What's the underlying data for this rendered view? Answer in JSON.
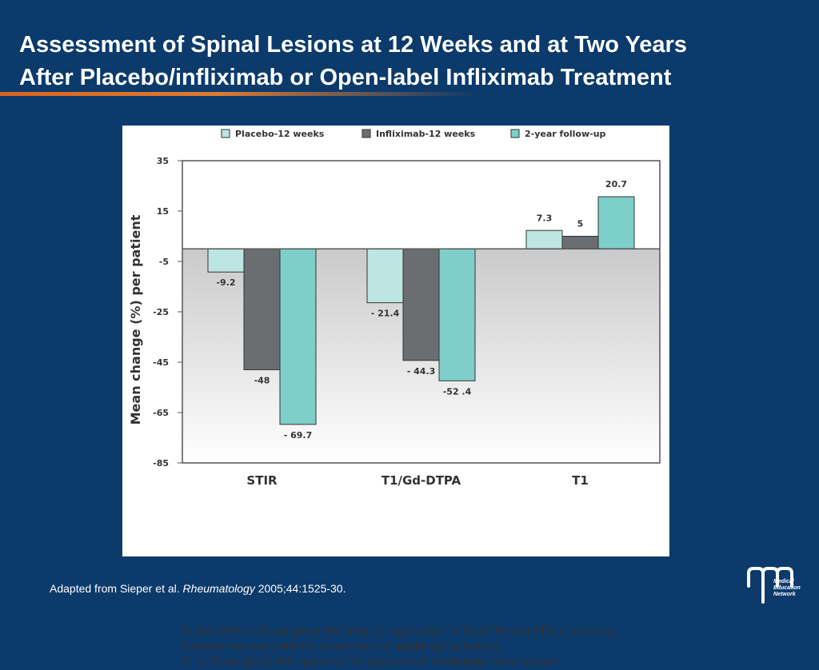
{
  "title": {
    "line1": "Assessment of Spinal Lesions at 12 Weeks and at Two Years",
    "line2": "After Placebo/infliximab or Open-label Infliximab Treatment"
  },
  "chart_data": {
    "type": "bar",
    "categories": [
      "STIR",
      "T1/Gd-DTPA",
      "T1"
    ],
    "series": [
      {
        "name": "Placebo-12 weeks",
        "values": [
          -9.2,
          -21.4,
          7.3
        ],
        "labels": [
          "-9.2",
          "- 21.4",
          "7.3"
        ]
      },
      {
        "name": "Infliximab-12 weeks",
        "values": [
          -48,
          -44.3,
          5
        ],
        "labels": [
          "-48",
          "- 44.3",
          "5"
        ]
      },
      {
        "name": "2-year follow-up",
        "values": [
          -69.7,
          -52.4,
          20.7
        ],
        "labels": [
          "- 69.7",
          "-52 .4",
          "20.7"
        ]
      }
    ],
    "ylabel": "Mean change (%) per patient",
    "yticks": [
      35,
      15,
      -5,
      -25,
      -45,
      -65,
      -85
    ],
    "ylim": [
      -85,
      35
    ],
    "legend_position": "top",
    "colors": [
      "#bde5e1",
      "#6b6e70",
      "#7ecfc9"
    ]
  },
  "footnote": {
    "line1": "T1/Gd-DTPA = T1-weighted MRI after i.v. application of Gd-DTPA and STIR = short tau",
    "line2_pre": "inversion recovery MRI for assessment of ",
    "line2_bold": "acute",
    "line2_post": " spinal lesions.",
    "line3_pre": "T1 = T1-weighted MRI sequence for assessment of ",
    "line3_bold": "chronic",
    "line3_post": " spinal lesions."
  },
  "source": {
    "pre": "Adapted from Sieper et al. ",
    "journal": "Rheumatology",
    "post": " 2005;44:1525-30."
  },
  "logo": {
    "text_lines": [
      "Medical",
      "Education",
      "Network"
    ],
    "icon": "men-logo-icon"
  }
}
